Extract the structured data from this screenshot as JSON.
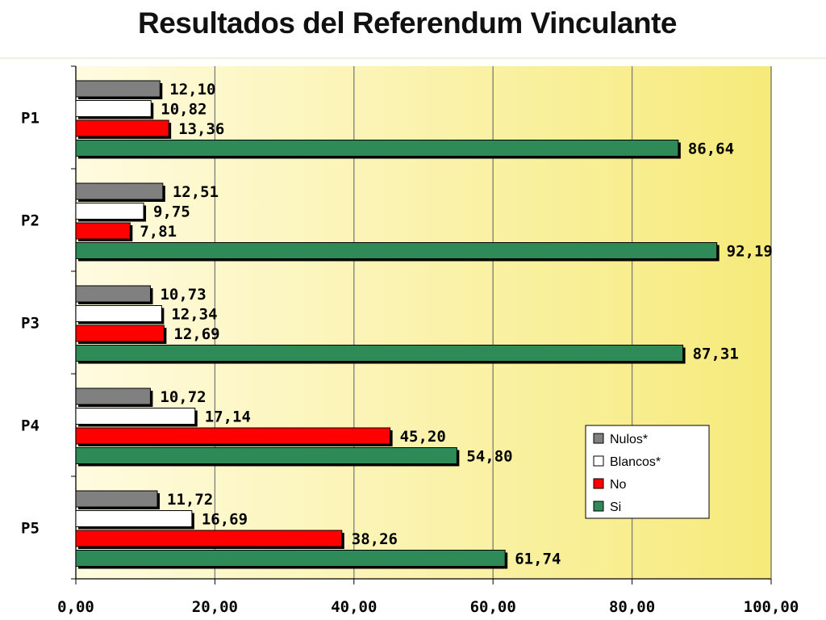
{
  "page": {
    "title": "Resultados del Referendum Vinculante"
  },
  "chart_data": {
    "type": "bar",
    "orientation": "horizontal",
    "title": "Resultados del Referendum Vinculante",
    "categories": [
      "P1",
      "P2",
      "P3",
      "P4",
      "P5"
    ],
    "series": [
      {
        "name": "Nulos*",
        "color": "#808080",
        "values": [
          12.1,
          12.51,
          10.73,
          10.72,
          11.72
        ],
        "labels": [
          "12,10",
          "12,51",
          "10,73",
          "10,72",
          "11,72"
        ]
      },
      {
        "name": "Blancos*",
        "color": "#ffffff",
        "values": [
          10.82,
          9.75,
          12.34,
          17.14,
          16.69
        ],
        "labels": [
          "10,82",
          "9,75",
          "12,34",
          "17,14",
          "16,69"
        ]
      },
      {
        "name": "No",
        "color": "#ff0000",
        "values": [
          13.36,
          7.81,
          12.69,
          45.2,
          38.26
        ],
        "labels": [
          "13,36",
          "7,81",
          "12,69",
          "45,20",
          "38,26"
        ]
      },
      {
        "name": "Si",
        "color": "#2e8b57",
        "values": [
          86.64,
          92.19,
          87.31,
          54.8,
          61.74
        ],
        "labels": [
          "86,64",
          "92,19",
          "87,31",
          "54,80",
          "61,74"
        ]
      }
    ],
    "xlim": [
      0,
      100
    ],
    "x_ticks": [
      "0,00",
      "20,00",
      "40,00",
      "60,00",
      "80,00",
      "100,00"
    ],
    "grid": true,
    "legend": {
      "placement": "bottom-right",
      "entries": [
        "Nulos*",
        "Blancos*",
        "No",
        "Si"
      ]
    },
    "colors": {
      "plot_background_start": "#fffbe0",
      "plot_background_end": "#f6ea7a",
      "gridline": "#7d7d7d"
    }
  }
}
